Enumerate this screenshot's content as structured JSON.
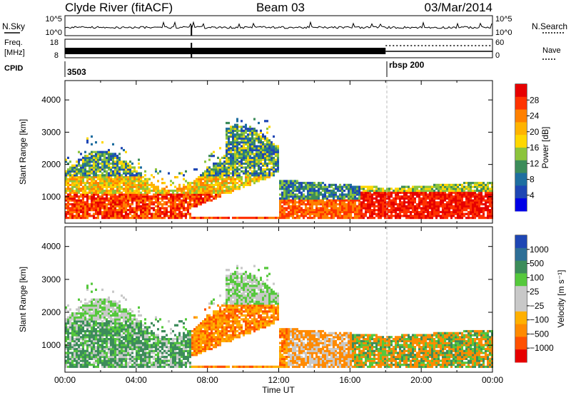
{
  "header": {
    "station": "Clyde River (fitACF)",
    "beam": "Beam 03",
    "date": "03/Mar/2014"
  },
  "nsky_panel": {
    "left_label": "N.Sky",
    "right_label": "N.Search",
    "left_ticks": [
      "10^5",
      "10^0"
    ],
    "right_ticks": [
      "10^5",
      "10^0"
    ]
  },
  "freq_panel": {
    "left_label_line1": "Freq.",
    "left_label_line2": "[MHz]",
    "right_label": "Nave",
    "left_ticks": [
      "18",
      "8"
    ],
    "right_ticks": [
      "60",
      "0"
    ]
  },
  "cpid_panel": {
    "label": "CPID",
    "entries": [
      {
        "text": "3503",
        "time_h": 0.0
      },
      {
        "text": "rbsp 200",
        "time_h": 18.0
      }
    ]
  },
  "x_axis": {
    "label": "Time UT",
    "ticks": [
      "00:00",
      "04:00",
      "08:00",
      "12:00",
      "16:00",
      "20:00",
      "00:00"
    ],
    "range_h": [
      0,
      24
    ]
  },
  "chart_data": [
    {
      "type": "heatmap",
      "title": "",
      "xlabel": "Time UT",
      "ylabel": "Slant Range [km]",
      "yticks": [
        "1000",
        "2000",
        "3000",
        "4000"
      ],
      "xlim_h": [
        0,
        24
      ],
      "ylim_km": [
        180,
        4600
      ],
      "colorbar": {
        "label": "Power [dB]",
        "ticks": [
          "28",
          "24",
          "20",
          "16",
          "12",
          "8",
          "4"
        ],
        "range": [
          0,
          32
        ],
        "colors_top_to_bottom": [
          "#e60000",
          "#ff3300",
          "#ff8000",
          "#ffb300",
          "#ffd700",
          "#8cc43c",
          "#3c8c5a",
          "#1e6ea0",
          "#1e46b4",
          "#0000e6"
        ]
      }
    },
    {
      "type": "heatmap",
      "title": "",
      "xlabel": "Time UT",
      "ylabel": "Slant Range [km]",
      "yticks": [
        "1000",
        "2000",
        "3000",
        "4000"
      ],
      "xlim_h": [
        0,
        24
      ],
      "ylim_km": [
        180,
        4600
      ],
      "colorbar": {
        "label": "Velocity [m s⁻¹]",
        "ticks": [
          "1000",
          "500",
          "100",
          "25",
          "−25",
          "−100",
          "−500",
          "−1000"
        ],
        "range": [
          -1200,
          1200
        ],
        "colors_top_to_bottom": [
          "#1e46b4",
          "#2d6e96",
          "#3c8c5a",
          "#55c83c",
          "#c8c8c8",
          "#c8c8c8",
          "#ffb000",
          "#ff8a00",
          "#ff5000",
          "#e60000"
        ]
      }
    }
  ]
}
